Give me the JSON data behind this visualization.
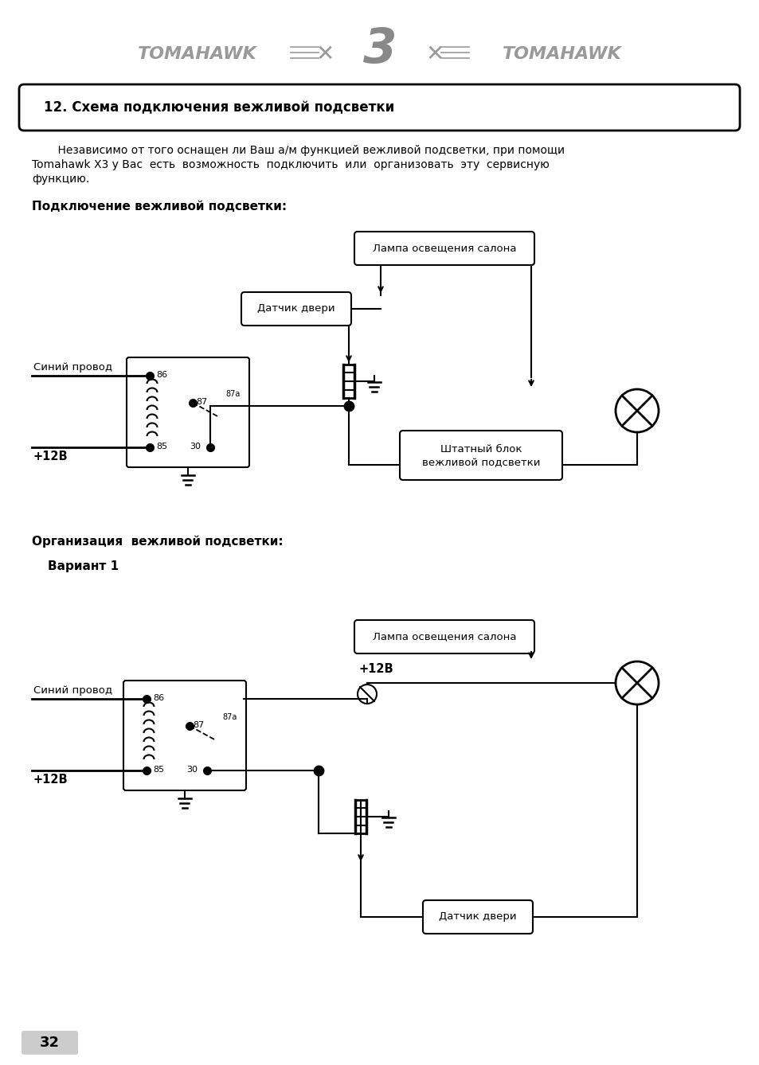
{
  "section_title": "12. Схема подключения вежливой подсветки",
  "body_text_line1": "    Независимо от того оснащен ли Ваш а/м функцией вежливой подсветки, при помощи",
  "body_text_line2": "Tomahawk X3 у Вас  есть  возможность  подключить  или  организовать  эту  сервисную",
  "body_text_line3": "функцию.",
  "subtitle1": "Подключение вежливой подсветки:",
  "subtitle2": "Организация  вежливой подсветки:",
  "variant1": "Вариант 1",
  "label_lamp1": "Лампа освещения салона",
  "label_door1": "Датчик двери",
  "label_blue1": "Синий провод",
  "label_plus1": "+12В",
  "label_block1_line1": "Штатный блок",
  "label_block1_line2": "вежливой подсветки",
  "label_lamp2": "Лампа освещения салона",
  "label_blue2": "Синий провод",
  "label_plus2": "+12В",
  "label_plus3": "+12В",
  "label_door2": "Датчик двери",
  "page_number": "32",
  "bg_color": "#ffffff",
  "black": "#000000",
  "gray": "#999999"
}
